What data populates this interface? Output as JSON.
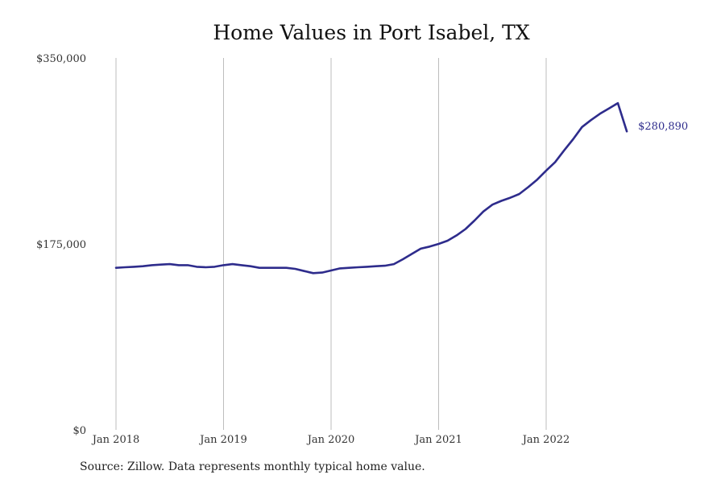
{
  "chart_data": {
    "type": "line",
    "title": "Home Values in Port Isabel, TX",
    "xlabel": "",
    "ylabel": "",
    "x_ticks": [
      "Jan 2018",
      "Jan 2019",
      "Jan 2020",
      "Jan 2021",
      "Jan 2022"
    ],
    "y_ticks": [
      "$0",
      "$175,000",
      "$350,000"
    ],
    "ylim": [
      0,
      350000
    ],
    "grid": "vertical",
    "line_color": "#2e2c8c",
    "end_label": "$280,890",
    "series": [
      {
        "x": [
          "2018-01",
          "2018-02",
          "2018-03",
          "2018-04",
          "2018-05",
          "2018-06",
          "2018-07",
          "2018-08",
          "2018-09",
          "2018-10",
          "2018-11",
          "2018-12",
          "2019-01",
          "2019-02",
          "2019-03",
          "2019-04",
          "2019-05",
          "2019-06",
          "2019-07",
          "2019-08",
          "2019-09",
          "2019-10",
          "2019-11",
          "2019-12",
          "2020-01",
          "2020-02",
          "2020-03",
          "2020-04",
          "2020-05",
          "2020-06",
          "2020-07",
          "2020-08",
          "2020-09",
          "2020-10",
          "2020-11",
          "2020-12",
          "2021-01",
          "2021-02",
          "2021-03",
          "2021-04",
          "2021-05",
          "2021-06",
          "2021-07",
          "2021-08",
          "2021-09",
          "2021-10",
          "2021-11",
          "2021-12",
          "2022-01",
          "2022-02",
          "2022-03",
          "2022-04",
          "2022-05",
          "2022-06",
          "2022-07",
          "2022-08",
          "2022-09",
          "2022-10"
        ],
        "values": [
          152500,
          153000,
          153500,
          154000,
          155000,
          155500,
          156000,
          155000,
          155000,
          153500,
          153000,
          153500,
          155000,
          156000,
          155000,
          154000,
          152500,
          152500,
          152500,
          152500,
          151500,
          149500,
          147500,
          148000,
          150000,
          152000,
          152500,
          153000,
          153500,
          154000,
          154500,
          156000,
          160500,
          165500,
          170500,
          172500,
          175000,
          178000,
          183000,
          189000,
          197000,
          205500,
          212000,
          215500,
          218500,
          222000,
          228500,
          235500,
          244000,
          252000,
          263000,
          273500,
          285000,
          291500,
          297500,
          302500,
          307500,
          280890
        ]
      }
    ]
  },
  "source_note": "Source: Zillow. Data represents monthly typical home value."
}
